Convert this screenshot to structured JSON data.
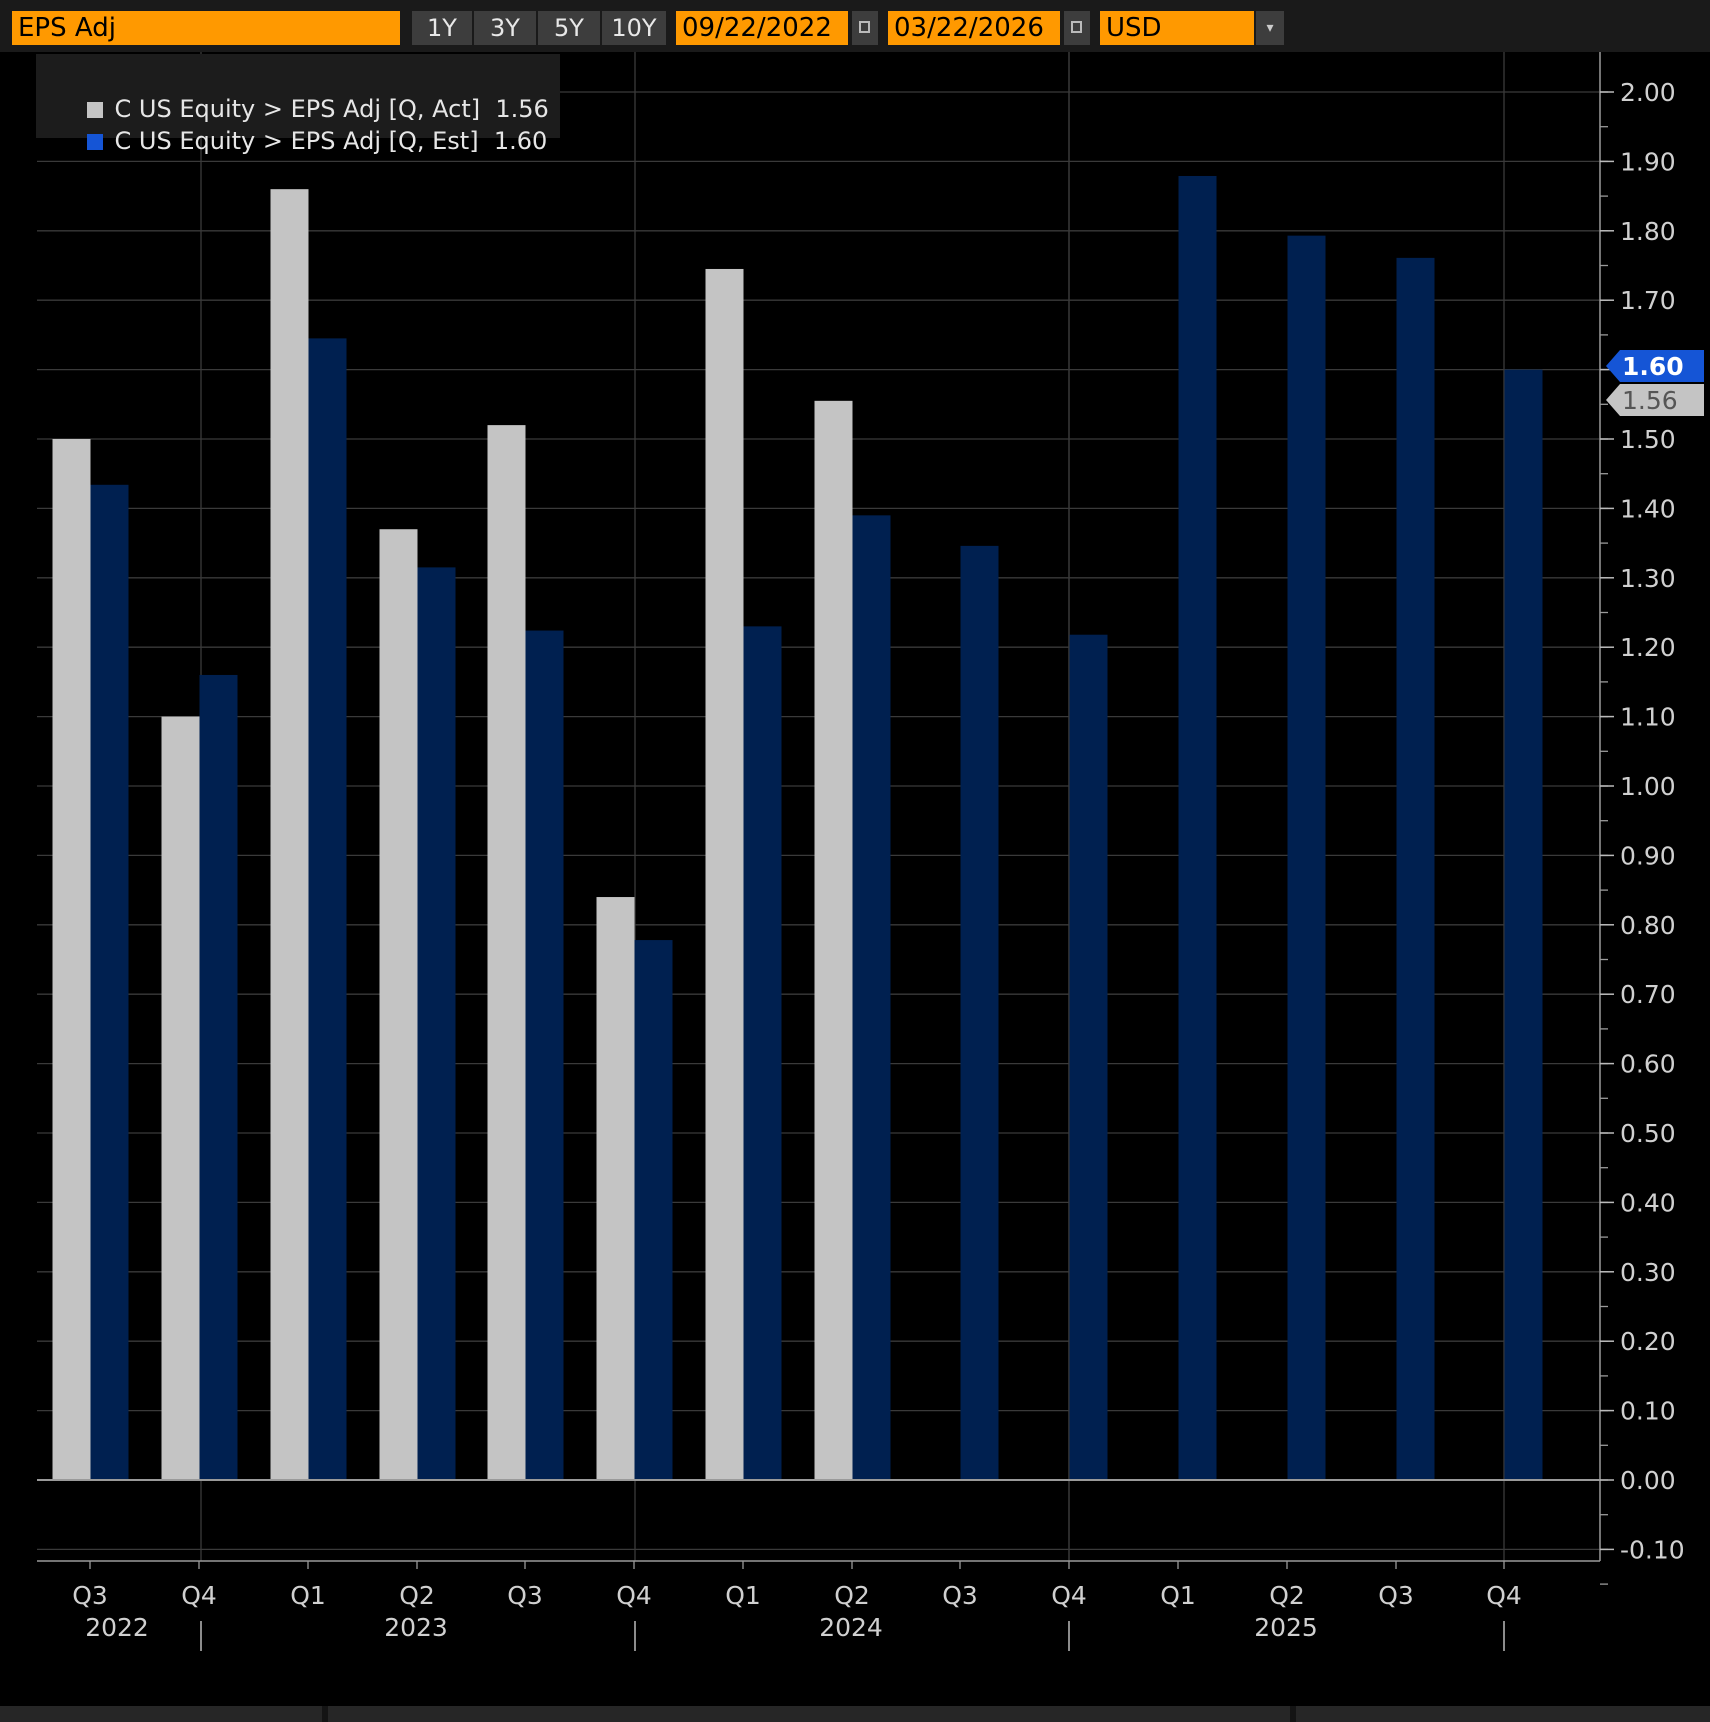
{
  "toolbar": {
    "field_label": "EPS Adj",
    "ranges": [
      "1Y",
      "3Y",
      "5Y",
      "10Y"
    ],
    "start_date": "09/22/2022",
    "end_date": "03/22/2026",
    "currency": "USD",
    "dropdown_glyph": "▾"
  },
  "legend": {
    "items": [
      {
        "label": "C US Equity > EPS Adj [Q, Act]",
        "value": "1.56",
        "color": "#c4c4c4"
      },
      {
        "label": "C US Equity > EPS Adj [Q, Est]",
        "value": "1.60",
        "color": "#1555d6"
      }
    ]
  },
  "chart_data": {
    "type": "bar",
    "categories": [
      "Q3 2022",
      "Q4 2022",
      "Q1 2023",
      "Q2 2023",
      "Q3 2023",
      "Q4 2023",
      "Q1 2024",
      "Q2 2024",
      "Q3 2024",
      "Q4 2024",
      "Q1 2025",
      "Q2 2025",
      "Q3 2025",
      "Q4 2025"
    ],
    "quarter_labels": [
      "Q3",
      "Q4",
      "Q1",
      "Q2",
      "Q3",
      "Q4",
      "Q1",
      "Q2",
      "Q3",
      "Q4",
      "Q1",
      "Q2",
      "Q3",
      "Q4"
    ],
    "year_labels": [
      {
        "text": "2022",
        "at": 0.25
      },
      {
        "text": "2023",
        "at": 3.0
      },
      {
        "text": "2024",
        "at": 7.0
      },
      {
        "text": "2025",
        "at": 11.0
      }
    ],
    "year_separators": [
      1,
      5,
      9,
      13
    ],
    "series": [
      {
        "name": "C US Equity > EPS Adj [Q, Act]",
        "color": "#c4c4c4",
        "values": [
          1.5,
          1.1,
          1.86,
          1.37,
          1.52,
          0.84,
          1.745,
          1.555,
          null,
          null,
          null,
          null,
          null,
          null
        ]
      },
      {
        "name": "C US Equity > EPS Adj [Q, Est]",
        "color": "#002050",
        "values": [
          1.434,
          1.16,
          1.645,
          1.315,
          1.224,
          0.778,
          1.23,
          1.39,
          1.346,
          1.218,
          1.879,
          1.793,
          1.761,
          1.6
        ]
      }
    ],
    "ylim": [
      -0.16,
      2.06
    ],
    "yticks": [
      -0.1,
      0,
      0.1,
      0.2,
      0.3,
      0.4,
      0.5,
      0.6,
      0.7,
      0.8,
      0.9,
      1.0,
      1.1,
      1.2,
      1.3,
      1.4,
      1.5,
      1.6,
      1.7,
      1.8,
      1.9,
      2.0
    ],
    "grid": true,
    "legend_position": "top-left",
    "last_value_tags": [
      {
        "value": 1.6,
        "label": "1.60",
        "bg": "#1555d6",
        "fg": "#ffffff"
      },
      {
        "value": 1.56,
        "label": "1.56",
        "bg": "#c4c4c4",
        "fg": "#555555"
      }
    ]
  }
}
